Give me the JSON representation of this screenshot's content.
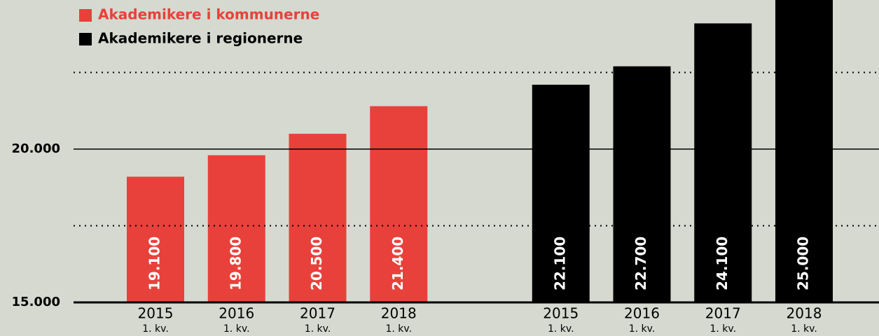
{
  "chart_data": {
    "type": "bar",
    "categories": [
      "2015",
      "2016",
      "2017",
      "2018",
      "2015",
      "2016",
      "2017",
      "2018"
    ],
    "category_sublabel": "1. kv.",
    "series": [
      {
        "name": "Akademikere i kommunerne",
        "color": "#e8413b",
        "values": [
          19100,
          19800,
          20500,
          21400,
          null,
          null,
          null,
          null
        ],
        "value_labels": [
          "19.100",
          "19.800",
          "20.500",
          "21.400",
          null,
          null,
          null,
          null
        ]
      },
      {
        "name": "Akademikere i regionerne",
        "color": "#000000",
        "values": [
          null,
          null,
          null,
          null,
          22100,
          22700,
          24100,
          25000
        ],
        "value_labels": [
          null,
          null,
          null,
          null,
          "22.100",
          "22.700",
          "24.100",
          "25.000"
        ]
      }
    ],
    "ylim": [
      15000,
      25000
    ],
    "yticks": [
      {
        "value": 15000,
        "label": "15.000"
      },
      {
        "value": 20000,
        "label": "20.000"
      }
    ],
    "minor_yticks": [
      17500,
      22500
    ],
    "legend": "top-left"
  }
}
